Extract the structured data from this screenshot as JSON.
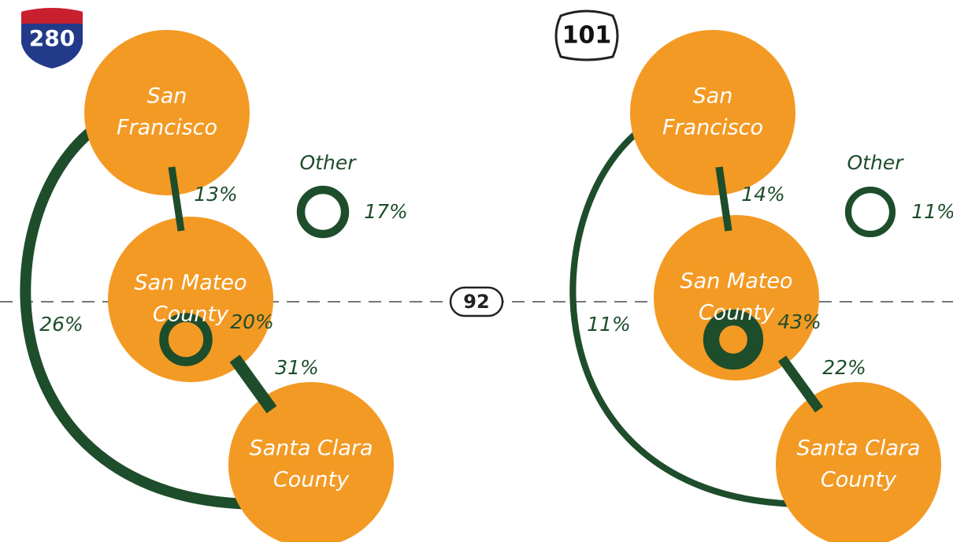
{
  "route_divider": "92",
  "panels": [
    {
      "highway": "280",
      "nodes": [
        {
          "lines": [
            "San",
            "Francisco"
          ]
        },
        {
          "lines": [
            "San Mateo",
            "County"
          ]
        },
        {
          "lines": [
            "Santa Clara",
            "County"
          ]
        }
      ],
      "flows": {
        "sf_to_sm": {
          "value": 13,
          "label": "13%"
        },
        "sm_to_sc": {
          "value": 31,
          "label": "31%"
        },
        "sf_to_sc": {
          "value": 26,
          "label": "26%"
        },
        "within_sm": {
          "value": 20,
          "label": "20%"
        }
      },
      "other": {
        "name": "Other",
        "value": 17,
        "label": "17%"
      }
    },
    {
      "highway": "101",
      "nodes": [
        {
          "lines": [
            "San",
            "Francisco"
          ]
        },
        {
          "lines": [
            "San Mateo",
            "County"
          ]
        },
        {
          "lines": [
            "Santa Clara",
            "County"
          ]
        }
      ],
      "flows": {
        "sf_to_sm": {
          "value": 14,
          "label": "14%"
        },
        "sm_to_sc": {
          "value": 22,
          "label": "22%"
        },
        "sf_to_sc": {
          "value": 11,
          "label": "11%"
        },
        "within_sm": {
          "value": 43,
          "label": "43%"
        }
      },
      "other": {
        "name": "Other",
        "value": 11,
        "label": "11%"
      }
    }
  ]
}
